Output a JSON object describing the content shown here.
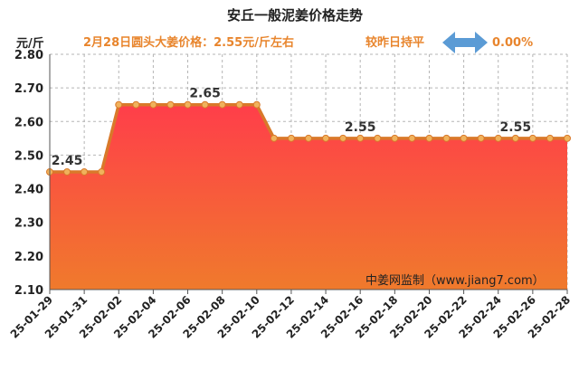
{
  "chart_data": {
    "type": "area",
    "title": "安丘一般泥姜价格走势",
    "ylabel": "元/斤",
    "subtitle": "2月28日圆头大姜价格：2.55元/斤左右",
    "comparison_label": "较昨日持平",
    "comparison_value": "0.00%",
    "watermark": "中姜网监制（www.jiang7.com）",
    "ylim": [
      2.1,
      2.8
    ],
    "yticks": [
      "2.80",
      "2.70",
      "2.60",
      "2.50",
      "2.40",
      "2.30",
      "2.20",
      "2.10"
    ],
    "x_tick_labels": [
      "25-01-29",
      "25-01-31",
      "25-02-02",
      "25-02-04",
      "25-02-06",
      "25-02-08",
      "25-02-10",
      "25-02-12",
      "25-02-14",
      "25-02-16",
      "25-02-18",
      "25-02-20",
      "25-02-22",
      "25-02-24",
      "25-02-26",
      "25-02-28"
    ],
    "x": [
      "25-01-29",
      "25-01-30",
      "25-01-31",
      "25-02-01",
      "25-02-02",
      "25-02-03",
      "25-02-04",
      "25-02-05",
      "25-02-06",
      "25-02-07",
      "25-02-08",
      "25-02-09",
      "25-02-10",
      "25-02-11",
      "25-02-12",
      "25-02-13",
      "25-02-14",
      "25-02-15",
      "25-02-16",
      "25-02-17",
      "25-02-18",
      "25-02-19",
      "25-02-20",
      "25-02-21",
      "25-02-22",
      "25-02-23",
      "25-02-24",
      "25-02-25",
      "25-02-26",
      "25-02-27",
      "25-02-28"
    ],
    "values": [
      2.45,
      2.45,
      2.45,
      2.45,
      2.65,
      2.65,
      2.65,
      2.65,
      2.65,
      2.65,
      2.65,
      2.65,
      2.65,
      2.55,
      2.55,
      2.55,
      2.55,
      2.55,
      2.55,
      2.55,
      2.55,
      2.55,
      2.55,
      2.55,
      2.55,
      2.55,
      2.55,
      2.55,
      2.55,
      2.55,
      2.55
    ],
    "data_labels": [
      {
        "index": 1,
        "text": "2.45"
      },
      {
        "index": 9,
        "text": "2.65"
      },
      {
        "index": 18,
        "text": "2.55"
      },
      {
        "index": 27,
        "text": "2.55"
      }
    ],
    "grid": true,
    "colors": {
      "line": "#d9792a",
      "marker": "#f0b25c",
      "fill_top": "#ff3e4a",
      "fill_bottom": "#f07a2c",
      "subtitle": "#e8852d",
      "arrow": "#5b9bd5"
    }
  }
}
